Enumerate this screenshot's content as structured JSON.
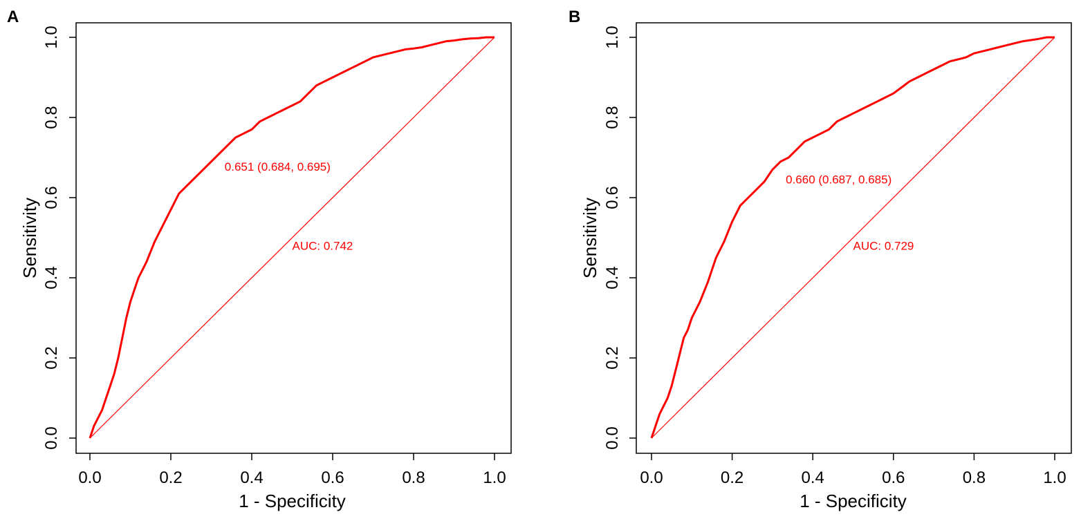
{
  "colors": {
    "roc": "#ff0000",
    "axis": "#000000",
    "background": "#ffffff"
  },
  "chart_data": [
    {
      "panel_label": "A",
      "type": "line",
      "title": "",
      "xlabel": "1 - Specificity",
      "ylabel": "Sensitivity",
      "xlim": [
        0.0,
        1.0
      ],
      "ylim": [
        0.0,
        1.0
      ],
      "xticks": [
        "0.0",
        "0.2",
        "0.4",
        "0.6",
        "0.8",
        "1.0"
      ],
      "yticks": [
        "0.0",
        "0.2",
        "0.4",
        "0.6",
        "0.8",
        "1.0"
      ],
      "grid": false,
      "series": [
        {
          "name": "ROC",
          "x": [
            0.0,
            0.01,
            0.02,
            0.03,
            0.04,
            0.05,
            0.06,
            0.07,
            0.08,
            0.09,
            0.1,
            0.11,
            0.12,
            0.13,
            0.14,
            0.16,
            0.18,
            0.2,
            0.22,
            0.24,
            0.26,
            0.28,
            0.3,
            0.32,
            0.34,
            0.36,
            0.38,
            0.4,
            0.42,
            0.44,
            0.46,
            0.48,
            0.5,
            0.52,
            0.54,
            0.56,
            0.58,
            0.6,
            0.62,
            0.64,
            0.66,
            0.68,
            0.7,
            0.72,
            0.74,
            0.76,
            0.78,
            0.8,
            0.82,
            0.84,
            0.86,
            0.88,
            0.9,
            0.92,
            0.94,
            0.96,
            0.98,
            1.0
          ],
          "y": [
            0.0,
            0.03,
            0.05,
            0.07,
            0.1,
            0.13,
            0.16,
            0.2,
            0.25,
            0.3,
            0.34,
            0.37,
            0.4,
            0.42,
            0.44,
            0.49,
            0.53,
            0.57,
            0.61,
            0.63,
            0.65,
            0.67,
            0.69,
            0.71,
            0.73,
            0.75,
            0.76,
            0.77,
            0.79,
            0.8,
            0.81,
            0.82,
            0.83,
            0.84,
            0.86,
            0.88,
            0.89,
            0.9,
            0.91,
            0.92,
            0.93,
            0.94,
            0.95,
            0.955,
            0.96,
            0.965,
            0.97,
            0.972,
            0.975,
            0.98,
            0.985,
            0.99,
            0.992,
            0.995,
            0.997,
            0.998,
            1.0,
            1.0
          ]
        },
        {
          "name": "Reference",
          "x": [
            0.0,
            1.0
          ],
          "y": [
            0.0,
            1.0
          ]
        }
      ],
      "annotations": [
        {
          "text": "0.651 (0.684, 0.695)",
          "x": 0.333,
          "y": 0.667
        },
        {
          "text": "AUC: 0.742",
          "x": 0.5,
          "y": 0.47
        }
      ],
      "auc": 0.742,
      "threshold": 0.651,
      "specificity_at_threshold": 0.684,
      "sensitivity_at_threshold": 0.695
    },
    {
      "panel_label": "B",
      "type": "line",
      "title": "",
      "xlabel": "1 - Specificity",
      "ylabel": "Sensitivity",
      "xlim": [
        0.0,
        1.0
      ],
      "ylim": [
        0.0,
        1.0
      ],
      "xticks": [
        "0.0",
        "0.2",
        "0.4",
        "0.6",
        "0.8",
        "1.0"
      ],
      "yticks": [
        "0.0",
        "0.2",
        "0.4",
        "0.6",
        "0.8",
        "1.0"
      ],
      "grid": false,
      "series": [
        {
          "name": "ROC",
          "x": [
            0.0,
            0.01,
            0.02,
            0.03,
            0.04,
            0.05,
            0.06,
            0.07,
            0.08,
            0.09,
            0.1,
            0.12,
            0.14,
            0.16,
            0.18,
            0.2,
            0.22,
            0.24,
            0.26,
            0.28,
            0.3,
            0.32,
            0.34,
            0.36,
            0.38,
            0.4,
            0.42,
            0.44,
            0.46,
            0.48,
            0.5,
            0.52,
            0.54,
            0.56,
            0.58,
            0.6,
            0.62,
            0.64,
            0.66,
            0.68,
            0.7,
            0.72,
            0.74,
            0.76,
            0.78,
            0.8,
            0.82,
            0.84,
            0.86,
            0.88,
            0.9,
            0.92,
            0.94,
            0.96,
            0.98,
            1.0
          ],
          "y": [
            0.0,
            0.03,
            0.06,
            0.08,
            0.1,
            0.13,
            0.17,
            0.21,
            0.25,
            0.27,
            0.3,
            0.34,
            0.39,
            0.45,
            0.49,
            0.54,
            0.58,
            0.6,
            0.62,
            0.64,
            0.67,
            0.69,
            0.7,
            0.72,
            0.74,
            0.75,
            0.76,
            0.77,
            0.79,
            0.8,
            0.81,
            0.82,
            0.83,
            0.84,
            0.85,
            0.86,
            0.875,
            0.89,
            0.9,
            0.91,
            0.92,
            0.93,
            0.94,
            0.945,
            0.95,
            0.96,
            0.965,
            0.97,
            0.975,
            0.98,
            0.985,
            0.99,
            0.993,
            0.996,
            1.0,
            1.0
          ]
        },
        {
          "name": "Reference",
          "x": [
            0.0,
            1.0
          ],
          "y": [
            0.0,
            1.0
          ]
        }
      ],
      "annotations": [
        {
          "text": "0.660 (0.687, 0.685)",
          "x": 0.333,
          "y": 0.635
        },
        {
          "text": "AUC: 0.729",
          "x": 0.5,
          "y": 0.47
        }
      ],
      "auc": 0.729,
      "threshold": 0.66,
      "specificity_at_threshold": 0.687,
      "sensitivity_at_threshold": 0.685
    }
  ]
}
